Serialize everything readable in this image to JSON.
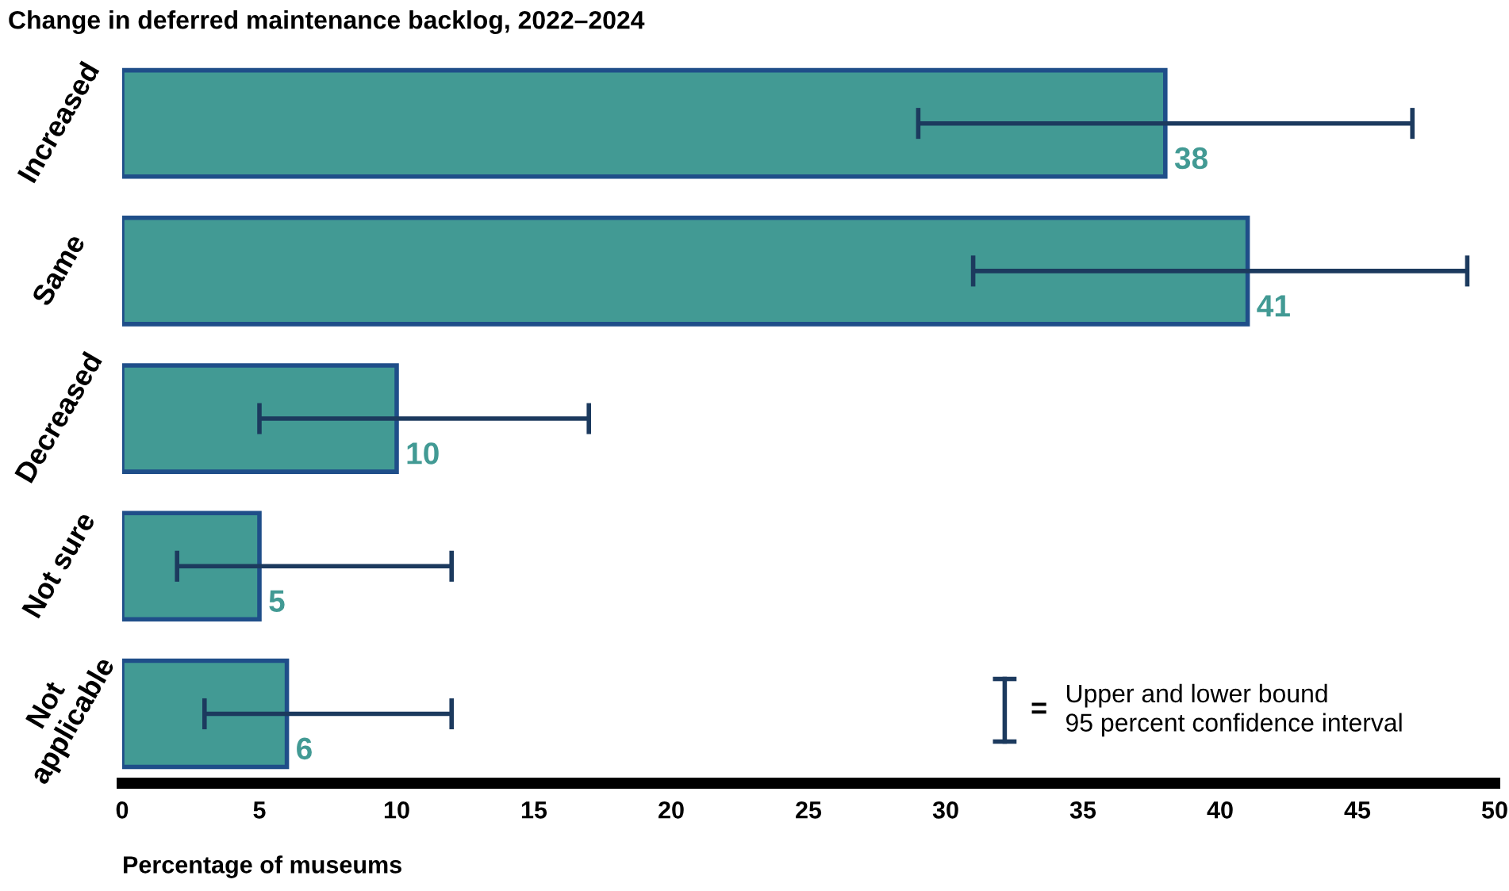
{
  "chart_data": {
    "type": "bar",
    "orientation": "horizontal",
    "title": "Change in deferred maintenance backlog, 2022–2024",
    "xlabel": "Percentage of museums",
    "categories": [
      "Increased",
      "Same",
      "Decreased",
      "Not sure",
      "Not\napplicable"
    ],
    "values": [
      38,
      41,
      10,
      5,
      6
    ],
    "errors": [
      [
        29,
        47
      ],
      [
        31,
        49
      ],
      [
        5,
        17
      ],
      [
        2,
        12
      ],
      [
        3,
        12
      ]
    ],
    "color": "#429a94",
    "data_labels": true,
    "xlim": [
      0,
      50
    ],
    "xticks": [
      0,
      5,
      10,
      15,
      20,
      25,
      30,
      35,
      40,
      45,
      50
    ],
    "grid": false,
    "annotations": [
      "=",
      "Upper and lower bound\n95 percent confidence interval"
    ]
  }
}
